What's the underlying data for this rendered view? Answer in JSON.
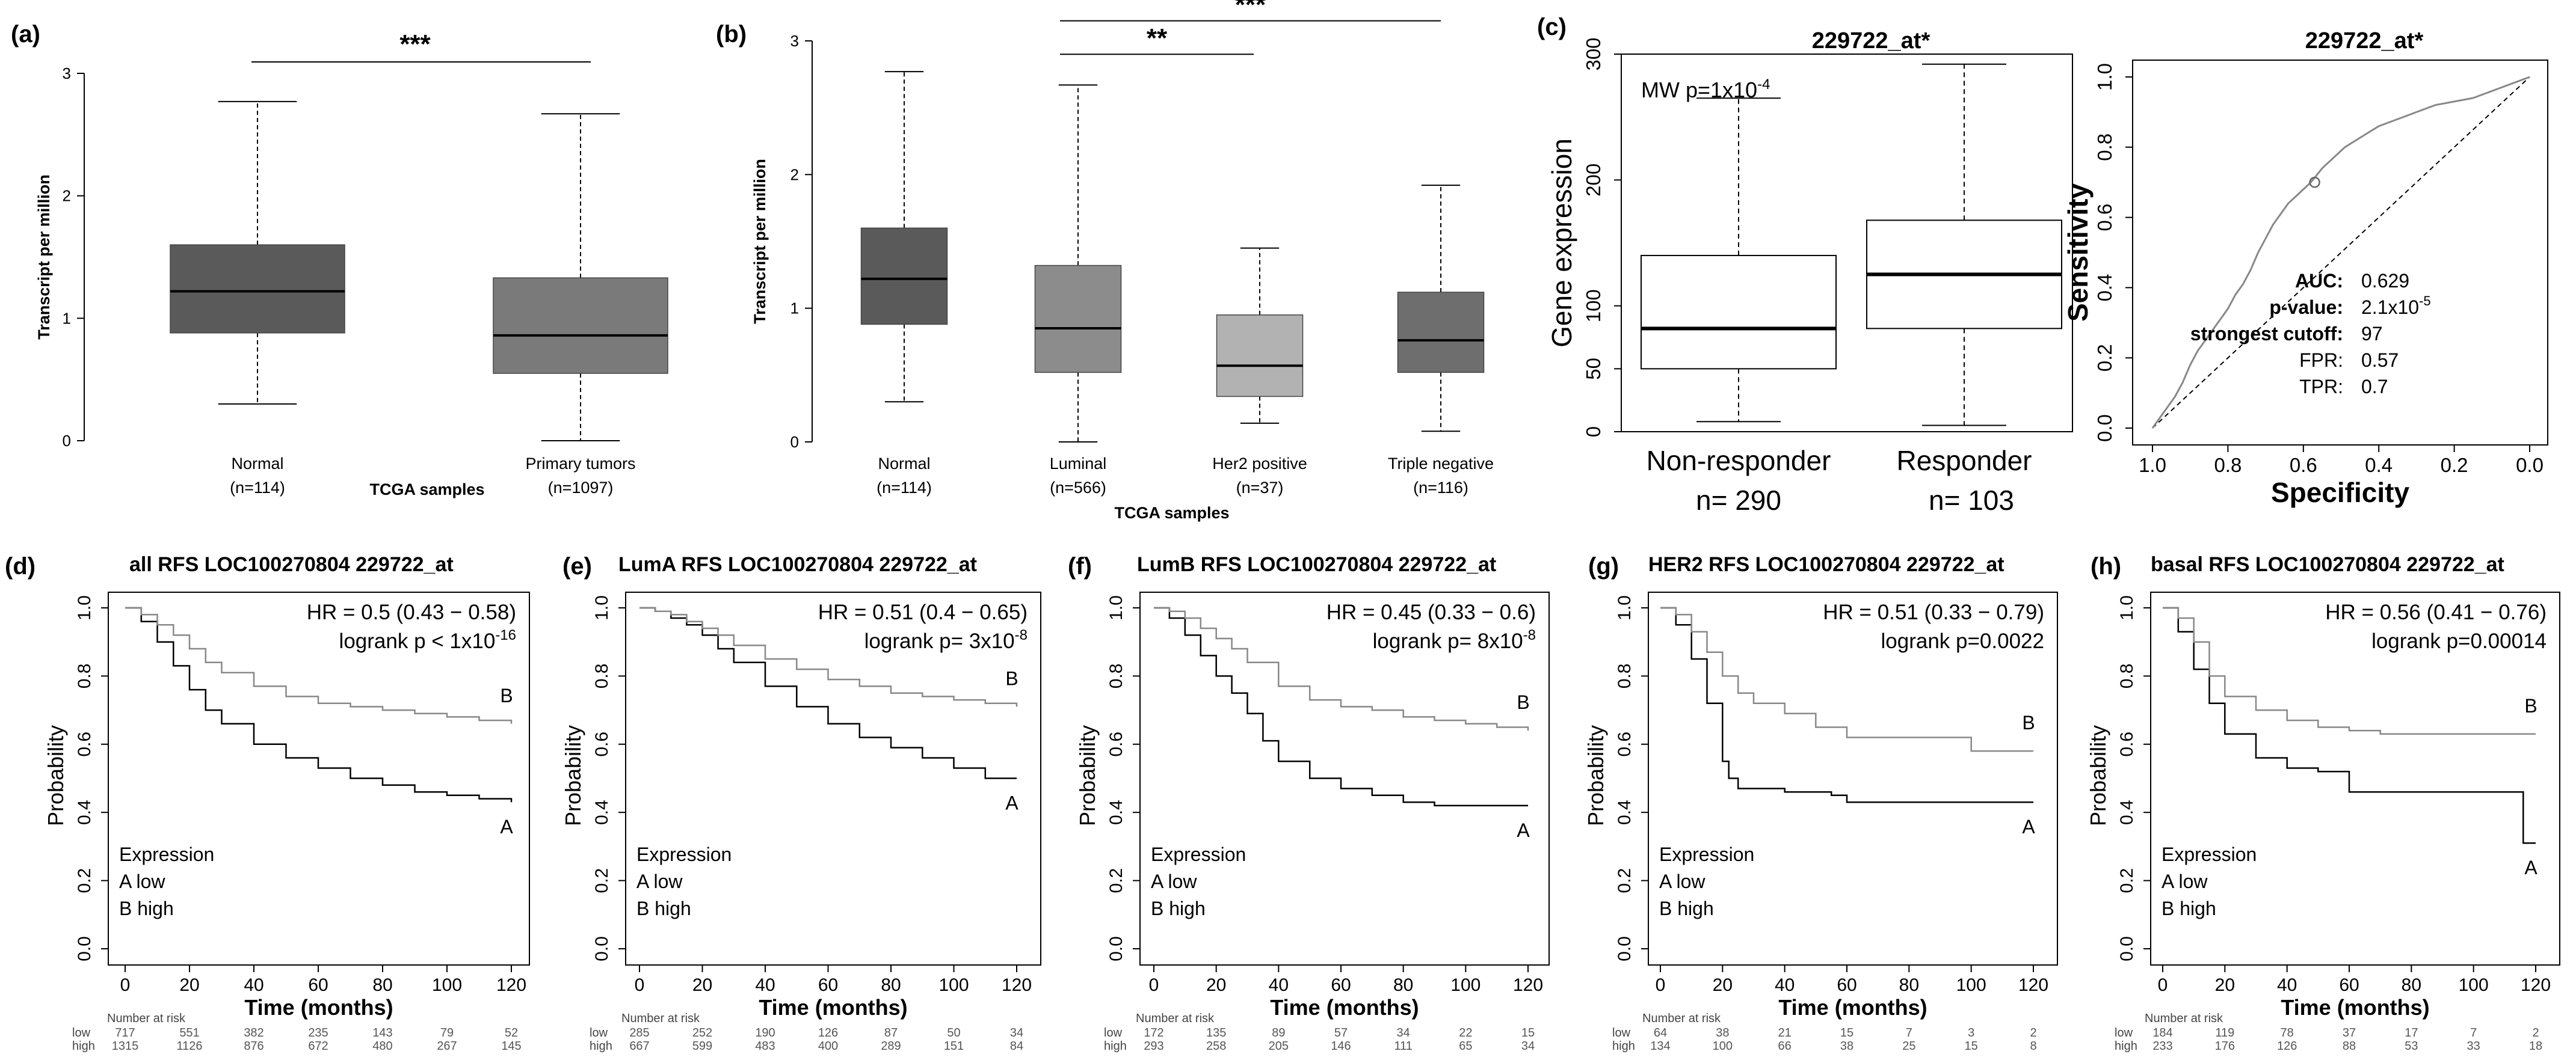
{
  "chart_data": [
    {
      "id": "a",
      "label": "(a)",
      "type": "boxplot",
      "ylabel": "Transcript per million",
      "xlabel": "TCGA samples",
      "ylim": [
        0,
        3
      ],
      "yticks": [
        0,
        1,
        2,
        3
      ],
      "significance": "***",
      "groups": [
        {
          "name": "Normal",
          "n": "(n=114)",
          "min": 0.3,
          "q1": 0.88,
          "median": 1.22,
          "q3": 1.6,
          "max": 2.77,
          "color": "#5a5a5a"
        },
        {
          "name": "Primary tumors",
          "n": "(n=1097)",
          "min": 0.0,
          "q1": 0.55,
          "median": 0.86,
          "q3": 1.33,
          "max": 2.67,
          "color": "#7a7a7a"
        }
      ]
    },
    {
      "id": "b",
      "label": "(b)",
      "type": "boxplot",
      "ylabel": "Transcript per million",
      "xlabel": "TCGA samples",
      "ylim": [
        0,
        3
      ],
      "yticks": [
        0,
        1,
        2,
        3
      ],
      "groups": [
        {
          "name": "Normal",
          "n": "(n=114)",
          "min": 0.3,
          "q1": 0.88,
          "median": 1.22,
          "q3": 1.6,
          "max": 2.77,
          "color": "#5a5a5a"
        },
        {
          "name": "Luminal",
          "n": "(n=566)",
          "min": 0.0,
          "q1": 0.52,
          "median": 0.85,
          "q3": 1.32,
          "max": 2.67,
          "color": "#8c8c8c"
        },
        {
          "name": "Her2 positive",
          "n": "(n=37)",
          "min": 0.14,
          "q1": 0.34,
          "median": 0.57,
          "q3": 0.95,
          "max": 1.45,
          "color": "#b2b2b2"
        },
        {
          "name": "Triple negative",
          "n": "(n=116)",
          "min": 0.08,
          "q1": 0.52,
          "median": 0.76,
          "q3": 1.12,
          "max": 1.92,
          "color": "#6e6e6e"
        }
      ],
      "brackets": [
        {
          "label": "**",
          "from": 1,
          "to": 2,
          "y": 2.9
        },
        {
          "label": "***",
          "from": 1,
          "to": 3,
          "y": 3.15
        }
      ]
    },
    {
      "id": "c",
      "label": "(c)",
      "type": "boxplot",
      "title": "229722_at*",
      "ylabel": "Gene expression",
      "ylim": [
        0,
        300
      ],
      "yticks": [
        0,
        50,
        100,
        200,
        300
      ],
      "annotation": "MW p=1x10",
      "annotation_exp": "-4",
      "groups": [
        {
          "name": "Non-responder",
          "n": "n= 290",
          "min": 8,
          "q1": 50,
          "median": 82,
          "q3": 140,
          "max": 265,
          "color": "#ffffff"
        },
        {
          "name": "Responder",
          "n": "n= 103",
          "min": 5,
          "q1": 82,
          "median": 125,
          "q3": 168,
          "max": 292,
          "color": "#ffffff"
        }
      ]
    },
    {
      "id": "roc",
      "type": "roc",
      "title": "229722_at*",
      "xlabel": "Specificity",
      "ylabel": "Sensitivity",
      "xticks": [
        1.0,
        0.8,
        0.6,
        0.4,
        0.2,
        0.0
      ],
      "yticks": [
        0.0,
        0.2,
        0.4,
        0.6,
        0.8,
        1.0
      ],
      "cutoff_point": {
        "specificity": 0.57,
        "sensitivity": 0.7
      },
      "curve": [
        [
          1.0,
          0.0
        ],
        [
          0.98,
          0.03
        ],
        [
          0.96,
          0.06
        ],
        [
          0.94,
          0.09
        ],
        [
          0.92,
          0.13
        ],
        [
          0.9,
          0.18
        ],
        [
          0.88,
          0.22
        ],
        [
          0.86,
          0.25
        ],
        [
          0.84,
          0.28
        ],
        [
          0.82,
          0.31
        ],
        [
          0.8,
          0.34
        ],
        [
          0.78,
          0.38
        ],
        [
          0.76,
          0.41
        ],
        [
          0.74,
          0.45
        ],
        [
          0.72,
          0.5
        ],
        [
          0.7,
          0.54
        ],
        [
          0.68,
          0.58
        ],
        [
          0.66,
          0.61
        ],
        [
          0.64,
          0.64
        ],
        [
          0.62,
          0.66
        ],
        [
          0.6,
          0.68
        ],
        [
          0.58,
          0.7
        ],
        [
          0.55,
          0.74
        ],
        [
          0.52,
          0.77
        ],
        [
          0.49,
          0.8
        ],
        [
          0.46,
          0.82
        ],
        [
          0.43,
          0.84
        ],
        [
          0.4,
          0.86
        ],
        [
          0.35,
          0.88
        ],
        [
          0.3,
          0.9
        ],
        [
          0.25,
          0.92
        ],
        [
          0.2,
          0.93
        ],
        [
          0.15,
          0.94
        ],
        [
          0.1,
          0.96
        ],
        [
          0.05,
          0.98
        ],
        [
          0.0,
          1.0
        ]
      ],
      "stats": [
        {
          "label": "AUC:",
          "value": "0.629"
        },
        {
          "label": "p-value:",
          "value": "2.1x10",
          "exp": "-5"
        },
        {
          "label": "strongest cutoff:",
          "value": "97"
        },
        {
          "label": "FPR:",
          "value": "0.57"
        },
        {
          "label": "TPR:",
          "value": "0.7"
        }
      ]
    },
    {
      "id": "d",
      "label": "(d)",
      "type": "line",
      "title": "all RFS LOC100270804 229722_at",
      "hr": "HR = 0.5 (0.43 − 0.58)",
      "logrank": "logrank p < 1x10",
      "logrank_exp": "-16",
      "xlabel": "Time (months)",
      "ylabel": "Probability",
      "xlim": [
        0,
        120
      ],
      "ylim": [
        0,
        1
      ],
      "xticks": [
        0,
        20,
        40,
        60,
        80,
        100,
        120
      ],
      "yticks": [
        0.0,
        0.2,
        0.4,
        0.6,
        0.8,
        1.0
      ],
      "legend": [
        "Expression",
        "A low",
        "B high"
      ],
      "series": [
        {
          "name": "A low",
          "end": "A",
          "color": "#000000",
          "x": [
            0,
            5,
            10,
            15,
            20,
            25,
            30,
            40,
            50,
            60,
            70,
            80,
            90,
            100,
            110,
            120
          ],
          "y": [
            1.0,
            0.96,
            0.9,
            0.83,
            0.76,
            0.7,
            0.66,
            0.6,
            0.56,
            0.53,
            0.5,
            0.48,
            0.46,
            0.45,
            0.44,
            0.43
          ]
        },
        {
          "name": "B high",
          "end": "B",
          "color": "#888888",
          "x": [
            0,
            5,
            10,
            15,
            20,
            25,
            30,
            40,
            50,
            60,
            70,
            80,
            90,
            100,
            110,
            120
          ],
          "y": [
            1.0,
            0.98,
            0.95,
            0.92,
            0.88,
            0.84,
            0.81,
            0.77,
            0.74,
            0.72,
            0.71,
            0.7,
            0.69,
            0.68,
            0.67,
            0.66
          ]
        }
      ],
      "risk": {
        "heading": "Number at risk",
        "low": [
          717,
          551,
          382,
          235,
          143,
          79,
          52
        ],
        "high": [
          1315,
          1126,
          876,
          672,
          480,
          267,
          145
        ]
      }
    },
    {
      "id": "e",
      "label": "(e)",
      "type": "line",
      "title": "LumA RFS LOC100270804 229722_at",
      "hr": "HR = 0.51 (0.4 − 0.65)",
      "logrank": "logrank p= 3x10",
      "logrank_exp": "-8",
      "xlabel": "Time (months)",
      "ylabel": "Probability",
      "xlim": [
        0,
        120
      ],
      "ylim": [
        0,
        1
      ],
      "xticks": [
        0,
        20,
        40,
        60,
        80,
        100,
        120
      ],
      "yticks": [
        0.0,
        0.2,
        0.4,
        0.6,
        0.8,
        1.0
      ],
      "legend": [
        "Expression",
        "A low",
        "B high"
      ],
      "series": [
        {
          "name": "A low",
          "end": "A",
          "color": "#000000",
          "x": [
            0,
            5,
            10,
            15,
            20,
            25,
            30,
            40,
            50,
            60,
            70,
            80,
            90,
            100,
            110,
            120
          ],
          "y": [
            1.0,
            0.99,
            0.97,
            0.95,
            0.92,
            0.88,
            0.84,
            0.77,
            0.71,
            0.66,
            0.62,
            0.59,
            0.56,
            0.53,
            0.5,
            0.5
          ]
        },
        {
          "name": "B high",
          "end": "B",
          "color": "#888888",
          "x": [
            0,
            5,
            10,
            15,
            20,
            25,
            30,
            40,
            50,
            60,
            70,
            80,
            90,
            100,
            110,
            120
          ],
          "y": [
            1.0,
            0.99,
            0.98,
            0.96,
            0.94,
            0.92,
            0.89,
            0.85,
            0.82,
            0.79,
            0.77,
            0.75,
            0.74,
            0.73,
            0.72,
            0.71
          ]
        }
      ],
      "risk": {
        "heading": "Number at risk",
        "low": [
          285,
          252,
          190,
          126,
          87,
          50,
          34
        ],
        "high": [
          667,
          599,
          483,
          400,
          289,
          151,
          84
        ]
      }
    },
    {
      "id": "f",
      "label": "(f)",
      "type": "line",
      "title": "LumB RFS LOC100270804 229722_at",
      "hr": "HR = 0.45 (0.33 − 0.6)",
      "logrank": "logrank p= 8x10",
      "logrank_exp": "-8",
      "xlabel": "Time (months)",
      "ylabel": "Probability",
      "xlim": [
        0,
        120
      ],
      "ylim": [
        0,
        1
      ],
      "xticks": [
        0,
        20,
        40,
        60,
        80,
        100,
        120
      ],
      "yticks": [
        0.0,
        0.2,
        0.4,
        0.6,
        0.8,
        1.0
      ],
      "legend": [
        "Expression",
        "A low",
        "B high"
      ],
      "series": [
        {
          "name": "A low",
          "end": "A",
          "color": "#000000",
          "x": [
            0,
            5,
            10,
            15,
            20,
            25,
            30,
            35,
            40,
            50,
            60,
            70,
            80,
            90,
            100,
            110,
            120
          ],
          "y": [
            1.0,
            0.97,
            0.92,
            0.86,
            0.8,
            0.75,
            0.69,
            0.61,
            0.55,
            0.5,
            0.47,
            0.45,
            0.43,
            0.42,
            0.42,
            0.42,
            0.42
          ]
        },
        {
          "name": "B high",
          "end": "B",
          "color": "#888888",
          "x": [
            0,
            5,
            10,
            15,
            20,
            25,
            30,
            40,
            50,
            60,
            70,
            80,
            90,
            100,
            110,
            120
          ],
          "y": [
            1.0,
            0.99,
            0.97,
            0.94,
            0.91,
            0.88,
            0.84,
            0.77,
            0.73,
            0.71,
            0.7,
            0.68,
            0.67,
            0.66,
            0.65,
            0.64
          ]
        }
      ],
      "risk": {
        "heading": "Number at risk",
        "low": [
          172,
          135,
          89,
          57,
          34,
          22,
          15
        ],
        "high": [
          293,
          258,
          205,
          146,
          111,
          65,
          34
        ]
      }
    },
    {
      "id": "g",
      "label": "(g)",
      "type": "line",
      "title": "HER2 RFS LOC100270804 229722_at",
      "hr": "HR = 0.51 (0.33 − 0.79)",
      "logrank": "logrank p=0.0022",
      "logrank_exp": "",
      "xlabel": "Time (months)",
      "ylabel": "Probability",
      "xlim": [
        0,
        120
      ],
      "ylim": [
        0,
        1
      ],
      "xticks": [
        0,
        20,
        40,
        60,
        80,
        100,
        120
      ],
      "yticks": [
        0.0,
        0.2,
        0.4,
        0.6,
        0.8,
        1.0
      ],
      "legend": [
        "Expression",
        "A low",
        "B high"
      ],
      "series": [
        {
          "name": "A low",
          "end": "A",
          "color": "#000000",
          "x": [
            0,
            5,
            10,
            15,
            20,
            22,
            25,
            30,
            40,
            50,
            55,
            60,
            80,
            100,
            120
          ],
          "y": [
            1.0,
            0.95,
            0.85,
            0.72,
            0.55,
            0.5,
            0.47,
            0.47,
            0.46,
            0.46,
            0.45,
            0.43,
            0.43,
            0.43,
            0.43
          ]
        },
        {
          "name": "B high",
          "end": "B",
          "color": "#888888",
          "x": [
            0,
            5,
            10,
            15,
            20,
            25,
            30,
            40,
            50,
            60,
            70,
            80,
            90,
            100,
            110,
            120
          ],
          "y": [
            1.0,
            0.98,
            0.93,
            0.87,
            0.8,
            0.75,
            0.72,
            0.69,
            0.65,
            0.62,
            0.62,
            0.62,
            0.62,
            0.58,
            0.58,
            0.58
          ]
        }
      ],
      "risk": {
        "heading": "Number at risk",
        "low": [
          64,
          38,
          21,
          15,
          7,
          3,
          2
        ],
        "high": [
          134,
          100,
          66,
          38,
          25,
          15,
          8
        ]
      }
    },
    {
      "id": "h",
      "label": "(h)",
      "type": "line",
      "title": "basal RFS LOC100270804 229722_at",
      "hr": "HR = 0.56 (0.41 − 0.76)",
      "logrank": "logrank p=0.00014",
      "logrank_exp": "",
      "xlabel": "Time (months)",
      "ylabel": "Probability",
      "xlim": [
        0,
        120
      ],
      "ylim": [
        0,
        1
      ],
      "xticks": [
        0,
        20,
        40,
        60,
        80,
        100,
        120
      ],
      "yticks": [
        0.0,
        0.2,
        0.4,
        0.6,
        0.8,
        1.0
      ],
      "legend": [
        "Expression",
        "A low",
        "B high"
      ],
      "series": [
        {
          "name": "A low",
          "end": "A",
          "color": "#000000",
          "x": [
            0,
            5,
            10,
            15,
            20,
            30,
            40,
            50,
            60,
            70,
            80,
            90,
            100,
            110,
            115,
            116,
            120
          ],
          "y": [
            1.0,
            0.93,
            0.82,
            0.72,
            0.63,
            0.56,
            0.53,
            0.52,
            0.46,
            0.46,
            0.46,
            0.46,
            0.46,
            0.46,
            0.46,
            0.31,
            0.31
          ]
        },
        {
          "name": "B high",
          "end": "B",
          "color": "#888888",
          "x": [
            0,
            5,
            10,
            15,
            20,
            30,
            40,
            50,
            60,
            70,
            80,
            90,
            100,
            110,
            120
          ],
          "y": [
            1.0,
            0.97,
            0.9,
            0.8,
            0.74,
            0.7,
            0.67,
            0.65,
            0.64,
            0.63,
            0.63,
            0.63,
            0.63,
            0.63,
            0.63
          ]
        }
      ],
      "risk": {
        "heading": "Number at risk",
        "low": [
          184,
          119,
          78,
          37,
          17,
          7,
          2
        ],
        "high": [
          233,
          176,
          126,
          88,
          53,
          33,
          18
        ]
      }
    }
  ]
}
